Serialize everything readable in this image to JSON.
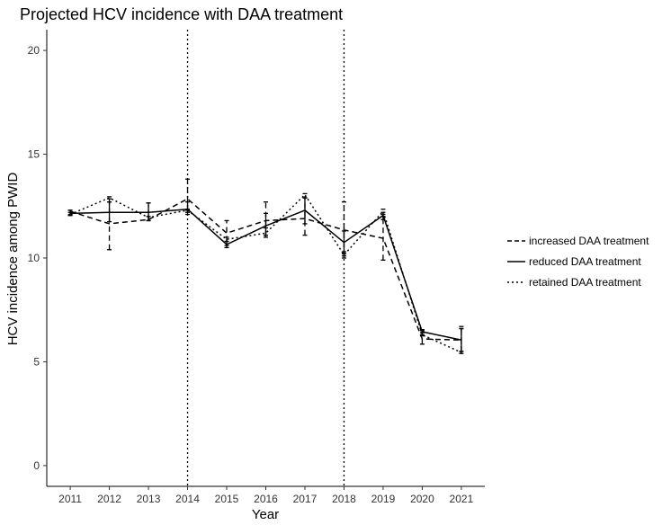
{
  "chart_data": {
    "type": "line",
    "title": "Projected HCV incidence with DAA treatment",
    "xlabel": "Year",
    "ylabel": "HCV incidence among PWID",
    "x": [
      2011,
      2012,
      2013,
      2014,
      2015,
      2016,
      2017,
      2018,
      2019,
      2020,
      2021
    ],
    "xlim": [
      2010.4,
      2021.6
    ],
    "ylim": [
      -1,
      21
    ],
    "yticks": [
      0,
      5,
      10,
      15,
      20
    ],
    "grid": false,
    "legend_position": "right",
    "vlines": [
      2014,
      2018
    ],
    "vline_style": "dotted",
    "series": [
      {
        "name": "increased DAA treatment",
        "dash": "dashed",
        "values": [
          12.25,
          11.65,
          11.85,
          12.85,
          11.2,
          11.8,
          11.9,
          11.35,
          10.95,
          6.1,
          6.05
        ],
        "lower": [
          12.1,
          10.4,
          11.8,
          12.3,
          10.8,
          11.1,
          11.1,
          10.1,
          9.9,
          5.85,
          5.5
        ],
        "upper": [
          12.3,
          12.85,
          12.0,
          13.8,
          11.8,
          12.7,
          12.9,
          12.7,
          12.0,
          6.4,
          6.7
        ]
      },
      {
        "name": "reduced DAA treatment",
        "dash": "solid",
        "values": [
          12.15,
          12.2,
          12.2,
          12.35,
          10.65,
          11.55,
          12.3,
          10.75,
          12.05,
          6.45,
          6.05
        ],
        "lower": [
          12.05,
          11.75,
          11.8,
          12.1,
          10.5,
          11.1,
          11.65,
          10.2,
          11.85,
          6.3,
          5.5
        ],
        "upper": [
          12.3,
          12.7,
          12.65,
          12.7,
          10.8,
          12.15,
          12.9,
          11.3,
          12.2,
          6.55,
          6.6
        ]
      },
      {
        "name": "retained DAA treatment",
        "dash": "dotted",
        "values": [
          12.1,
          12.9,
          11.95,
          12.3,
          10.9,
          11.2,
          13.05,
          10.15,
          12.25,
          6.3,
          5.45
        ],
        "lower": [
          12.05,
          12.7,
          11.8,
          12.2,
          10.6,
          11.0,
          12.9,
          10.0,
          12.1,
          6.25,
          5.4
        ],
        "upper": [
          12.2,
          12.95,
          12.65,
          12.35,
          11.0,
          11.45,
          13.1,
          10.3,
          12.35,
          6.5,
          6.6
        ]
      }
    ]
  }
}
